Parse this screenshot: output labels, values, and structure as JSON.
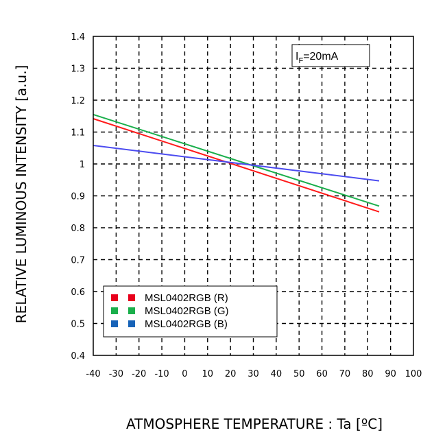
{
  "chart_data": {
    "type": "line",
    "xlabel": "ATMOSPHERE TEMPERATURE : Ta [ºC]",
    "ylabel": "RELATIVE LUMINOUS INTENSITY [a.u.]",
    "xlim": [
      -40,
      100
    ],
    "ylim": [
      0.4,
      1.4
    ],
    "x_ticks": [
      "-40",
      "-30",
      "-20",
      "-10",
      "0",
      "10",
      "20",
      "30",
      "40",
      "50",
      "60",
      "70",
      "80",
      "90",
      "100"
    ],
    "y_ticks": [
      "1.4",
      "1.3",
      "1.2",
      "1.1",
      "1",
      "0.9",
      "0.8",
      "0.7",
      "0.6",
      "0.5",
      "0.4"
    ],
    "grid": true,
    "grid_style": "dashed",
    "legend_position": "bottom-left",
    "annotation": {
      "main": "I",
      "sub": "F",
      "rest": "=20mA"
    },
    "series": [
      {
        "name": "MSL0402RGB (R)",
        "color": "#ff1a1a",
        "x": [
          -40,
          85
        ],
        "y": [
          1.142,
          0.85
        ]
      },
      {
        "name": "MSL0402RGB (G)",
        "color": "#1aaf4b",
        "x": [
          -40,
          85
        ],
        "y": [
          1.155,
          0.868
        ]
      },
      {
        "name": "MSL0402RGB (B)",
        "color": "#4c4cf0",
        "x": [
          -40,
          85
        ],
        "y": [
          1.058,
          0.947
        ]
      }
    ],
    "legend_swatch_colors": [
      "#e8001c",
      "#1aaf4b",
      "#1763b8"
    ]
  }
}
